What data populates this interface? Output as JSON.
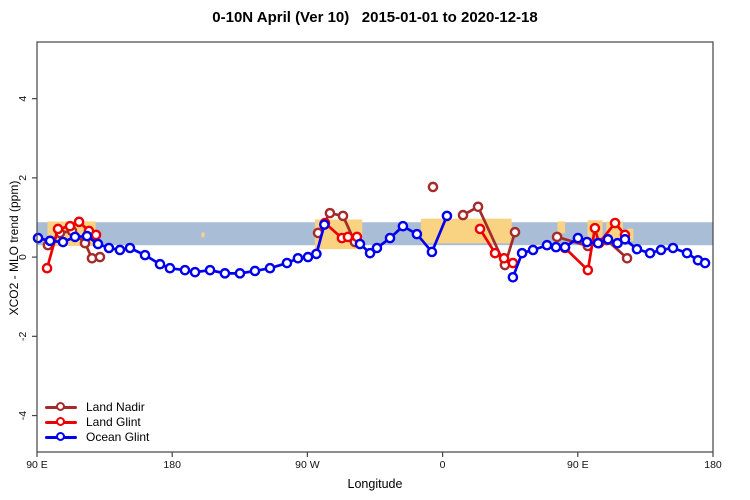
{
  "chart_data": {
    "type": "line",
    "title": "0-10N April (Ver 10)   2015-01-01 to 2020-12-18",
    "xlabel": "Longitude",
    "ylabel": "XCO2 - MLO trend (ppm)",
    "x_axis": {
      "min": 90,
      "max": 540,
      "ticks": [
        90,
        180,
        270,
        360,
        450,
        540
      ],
      "tick_labels": [
        "90 E",
        "180",
        "90 W",
        "0",
        "90 E",
        "180"
      ],
      "wrapped_longitude": true
    },
    "y_axis": {
      "min": -4.92,
      "max": 5.43,
      "ticks": [
        -4,
        -2,
        0,
        2,
        4
      ],
      "tick_labels": [
        "-4",
        "-2",
        "0",
        "2",
        "4"
      ],
      "unit": "ppm"
    },
    "bands": {
      "blue_band": {
        "color": "#A9BED6",
        "x1": 90,
        "x2": 540,
        "y1": 0.3,
        "y2": 0.88
      },
      "orange_patches": {
        "color": "#FAD382",
        "rects": [
          {
            "x1": 97,
            "x2": 129,
            "y1": 0.28,
            "y2": 0.9
          },
          {
            "x1": 199.5,
            "x2": 201.5,
            "y1": 0.5,
            "y2": 0.62
          },
          {
            "x1": 275,
            "x2": 306.5,
            "y1": 0.2,
            "y2": 0.95
          },
          {
            "x1": 345.5,
            "x2": 406,
            "y1": 0.35,
            "y2": 0.97
          },
          {
            "x1": 436.5,
            "x2": 441.5,
            "y1": 0.6,
            "y2": 0.9
          },
          {
            "x1": 456.5,
            "x2": 466.5,
            "y1": 0.5,
            "y2": 0.93
          },
          {
            "x1": 469,
            "x2": 480,
            "y1": 0.45,
            "y2": 0.9
          },
          {
            "x1": 483,
            "x2": 487,
            "y1": 0.4,
            "y2": 0.72
          }
        ]
      }
    },
    "series": [
      {
        "name": "Land Nadir",
        "color": "#A52A2A",
        "segments": [
          [
            [
              97.3,
              0.3
            ],
            [
              105.3,
              0.61
            ],
            [
              113.3,
              0.66
            ],
            [
              122.0,
              0.35
            ],
            [
              126.6,
              -0.03
            ],
            [
              131.9,
              0.0
            ]
          ],
          [
            [
              277.1,
              0.61
            ],
            [
              285.0,
              1.11
            ],
            [
              293.7,
              1.04
            ],
            [
              301.6,
              0.38
            ]
          ],
          [
            [
              353.6,
              1.77
            ]
          ],
          [
            [
              373.6,
              1.06
            ],
            [
              383.6,
              1.27
            ],
            [
              401.5,
              -0.2
            ],
            [
              408.2,
              0.63
            ]
          ],
          [
            [
              436.2,
              0.51
            ],
            [
              456.7,
              0.28
            ],
            [
              469.4,
              0.43
            ],
            [
              482.8,
              -0.03
            ]
          ]
        ]
      },
      {
        "name": "Land Glint",
        "color": "#EE0000",
        "segments": [
          [
            [
              96.7,
              -0.28
            ],
            [
              104.0,
              0.71
            ],
            [
              112.0,
              0.78
            ],
            [
              118.0,
              0.89
            ],
            [
              124.6,
              0.66
            ],
            [
              129.3,
              0.56
            ]
          ],
          [
            [
              281.7,
              0.86
            ],
            [
              293.0,
              0.48
            ],
            [
              297.0,
              0.51
            ],
            [
              303.0,
              0.51
            ]
          ],
          [
            [
              384.9,
              0.71
            ],
            [
              394.9,
              0.1
            ],
            [
              400.9,
              -0.03
            ],
            [
              406.8,
              -0.15
            ]
          ],
          [
            [
              441.5,
              0.23
            ],
            [
              456.7,
              -0.33
            ],
            [
              461.4,
              0.73
            ],
            [
              464.1,
              0.35
            ],
            [
              474.8,
              0.86
            ],
            [
              481.4,
              0.56
            ]
          ]
        ]
      },
      {
        "name": "Ocean Glint",
        "color": "#0000EE",
        "segments": [
          [
            [
              90.7,
              0.48
            ],
            [
              98.7,
              0.41
            ],
            [
              107.3,
              0.38
            ],
            [
              115.3,
              0.51
            ],
            [
              123.3,
              0.53
            ],
            [
              130.6,
              0.33
            ],
            [
              137.9,
              0.23
            ],
            [
              145.2,
              0.18
            ],
            [
              151.9,
              0.23
            ],
            [
              161.9,
              0.05
            ],
            [
              171.9,
              -0.18
            ],
            [
              178.5,
              -0.28
            ],
            [
              188.5,
              -0.33
            ],
            [
              195.2,
              -0.38
            ],
            [
              205.2,
              -0.33
            ],
            [
              215.1,
              -0.41
            ],
            [
              225.1,
              -0.41
            ],
            [
              235.1,
              -0.35
            ],
            [
              245.1,
              -0.28
            ],
            [
              256.4,
              -0.15
            ],
            [
              263.7,
              -0.03
            ],
            [
              270.4,
              0.0
            ],
            [
              276.0,
              0.08
            ],
            [
              281.3,
              0.82
            ]
          ],
          [
            [
              305.0,
              0.33
            ],
            [
              311.7,
              0.1
            ],
            [
              316.3,
              0.23
            ],
            [
              325.0,
              0.48
            ],
            [
              333.6,
              0.78
            ],
            [
              342.9,
              0.58
            ],
            [
              352.9,
              0.13
            ],
            [
              362.9,
              1.04
            ]
          ],
          [
            [
              406.8,
              -0.51
            ],
            [
              412.9,
              0.1
            ],
            [
              420.2,
              0.18
            ],
            [
              429.5,
              0.3
            ],
            [
              435.5,
              0.25
            ],
            [
              441.5,
              0.25
            ],
            [
              450.1,
              0.48
            ],
            [
              456.1,
              0.38
            ],
            [
              463.5,
              0.35
            ],
            [
              470.1,
              0.45
            ],
            [
              476.4,
              0.35
            ],
            [
              481.4,
              0.45
            ],
            [
              489.4,
              0.2
            ],
            [
              498.1,
              0.1
            ],
            [
              505.4,
              0.18
            ],
            [
              513.4,
              0.23
            ],
            [
              522.7,
              0.1
            ],
            [
              530.0,
              -0.08
            ],
            [
              534.7,
              -0.15
            ]
          ]
        ]
      }
    ],
    "legend": {
      "position": "bottom-left",
      "entries": [
        "Land Nadir",
        "Land Glint",
        "Ocean Glint"
      ]
    }
  }
}
